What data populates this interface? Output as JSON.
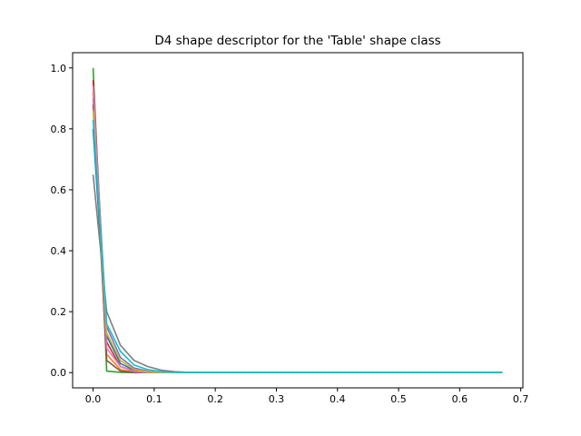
{
  "chart_data": {
    "type": "line",
    "title": "D4 shape descriptor for the 'Table' shape class",
    "xlabel": "",
    "ylabel": "",
    "xlim": [
      -0.0335,
      0.7035
    ],
    "ylim": [
      -0.05,
      1.05
    ],
    "grid": false,
    "legend": "none",
    "x_ticks": [
      0.0,
      0.1,
      0.2,
      0.3,
      0.4,
      0.5,
      0.6,
      0.7
    ],
    "x_tick_labels": [
      "0.0",
      "0.1",
      "0.2",
      "0.3",
      "0.4",
      "0.5",
      "0.6",
      "0.7"
    ],
    "y_ticks": [
      0.0,
      0.2,
      0.4,
      0.6,
      0.8,
      1.0
    ],
    "y_tick_labels": [
      "0.0",
      "0.2",
      "0.4",
      "0.6",
      "0.8",
      "1.0"
    ],
    "x": [
      0.0,
      0.0223,
      0.0447,
      0.067,
      0.0893,
      0.1117,
      0.134,
      0.1563,
      0.1787,
      0.201,
      0.67
    ],
    "series": [
      {
        "color": "#1f77b4",
        "values": [
          0.8,
          0.12,
          0.03,
          0.008,
          0.003,
          0.001,
          0,
          0,
          0,
          0,
          0
        ]
      },
      {
        "color": "#ff7f0e",
        "values": [
          0.92,
          0.06,
          0.01,
          0.002,
          0,
          0,
          0,
          0,
          0,
          0,
          0
        ]
      },
      {
        "color": "#2ca02c",
        "values": [
          1.0,
          0.005,
          0.001,
          0,
          0,
          0,
          0,
          0,
          0,
          0,
          0
        ]
      },
      {
        "color": "#d62728",
        "values": [
          0.96,
          0.1,
          0.02,
          0.005,
          0.001,
          0,
          0,
          0,
          0,
          0,
          0
        ]
      },
      {
        "color": "#9467bd",
        "values": [
          0.9,
          0.15,
          0.05,
          0.015,
          0.005,
          0.001,
          0,
          0,
          0,
          0,
          0
        ]
      },
      {
        "color": "#8c564b",
        "values": [
          0.88,
          0.04,
          0.005,
          0.001,
          0,
          0,
          0,
          0,
          0,
          0,
          0
        ]
      },
      {
        "color": "#e377c2",
        "values": [
          0.94,
          0.08,
          0.02,
          0.004,
          0.001,
          0,
          0,
          0,
          0,
          0,
          0
        ]
      },
      {
        "color": "#7f7f7f",
        "values": [
          0.65,
          0.2,
          0.09,
          0.04,
          0.02,
          0.008,
          0.003,
          0.001,
          0,
          0,
          0
        ]
      },
      {
        "color": "#bcbd22",
        "values": [
          0.86,
          0.13,
          0.04,
          0.01,
          0.003,
          0.001,
          0,
          0,
          0,
          0,
          0
        ]
      },
      {
        "color": "#17becf",
        "values": [
          0.83,
          0.16,
          0.07,
          0.025,
          0.01,
          0.003,
          0.001,
          0,
          0,
          0,
          0
        ]
      }
    ]
  }
}
